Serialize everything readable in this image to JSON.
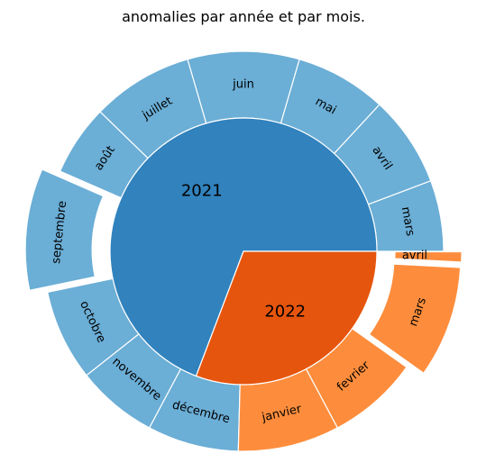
{
  "chart_data": {
    "type": "pie",
    "subtype": "nested-donut",
    "title": "anomalies par année et par mois.",
    "colors": {
      "year_2021": "#3182bd",
      "month_2021": "#6baed6",
      "year_2022": "#e6550d",
      "month_2022": "#fd8d3c",
      "edge": "#ffffff"
    },
    "years": [
      {
        "label": "2021",
        "value": 9
      },
      {
        "label": "2022",
        "value": 4
      }
    ],
    "months": [
      {
        "label": "mars",
        "year": "2021",
        "value": 7
      },
      {
        "label": "avril",
        "year": "2021",
        "value": 9
      },
      {
        "label": "mai",
        "year": "2021",
        "value": 9
      },
      {
        "label": "juin",
        "year": "2021",
        "value": 11
      },
      {
        "label": "juillet",
        "year": "2021",
        "value": 10
      },
      {
        "label": "août",
        "year": "2021",
        "value": 7
      },
      {
        "label": "septembre",
        "year": "2021",
        "value": 12,
        "exploded": true
      },
      {
        "label": "octobre",
        "year": "2021",
        "value": 9
      },
      {
        "label": "novembre",
        "year": "2021",
        "value": 8
      },
      {
        "label": "décembre",
        "year": "2021",
        "value": 9
      },
      {
        "label": "janvier",
        "year": "2022",
        "value": 10
      },
      {
        "label": "fevrier",
        "year": "2022",
        "value": 9
      },
      {
        "label": "mars",
        "year": "2022",
        "value": 11,
        "exploded": true
      },
      {
        "label": "avril",
        "year": "2022",
        "value": 1,
        "exploded": true
      }
    ]
  }
}
